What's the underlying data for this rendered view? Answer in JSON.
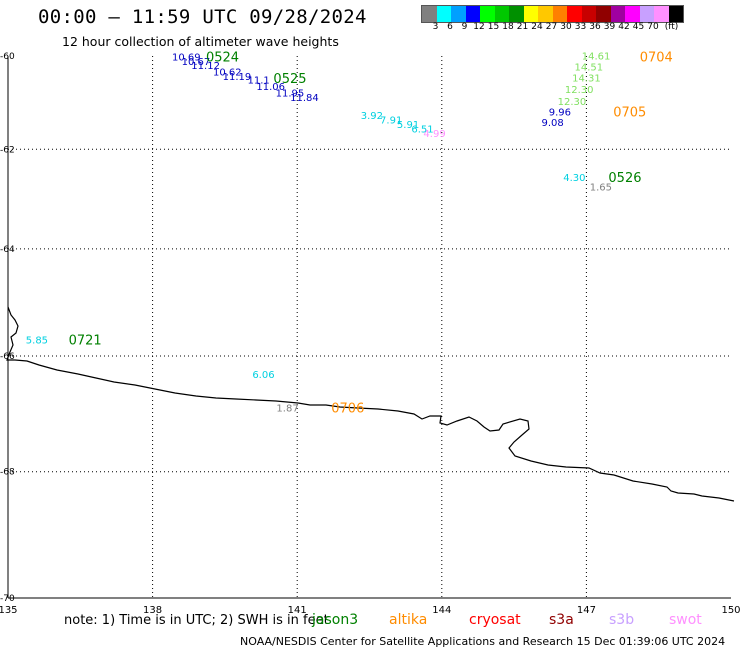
{
  "header": {
    "title": "00:00 – 11:59 UTC 09/28/2024",
    "subtitle": "12 hour collection of altimeter wave heights"
  },
  "colorbar": {
    "colors": [
      "#808080",
      "#00ffff",
      "#00a0ff",
      "#0000ff",
      "#00ff00",
      "#00c800",
      "#009000",
      "#ffff00",
      "#ffc800",
      "#ff8000",
      "#ff0000",
      "#c80000",
      "#900000",
      "#a000a0",
      "#ff00ff",
      "#c8a0ff",
      "#ff90ff",
      "#000000"
    ],
    "labels": [
      "3",
      "6",
      "9",
      "12",
      "15",
      "18",
      "21",
      "24",
      "27",
      "30",
      "33",
      "36",
      "39",
      "42",
      "45",
      "70",
      "(ft)"
    ]
  },
  "chart_data": {
    "type": "scatter",
    "xlim": [
      135,
      150
    ],
    "ylim": [
      -70,
      -60
    ],
    "x_ticks": [
      "135",
      "138",
      "141",
      "144",
      "147",
      "150"
    ],
    "y_ticks": [
      "-60",
      "-62",
      "-64",
      "-66",
      "-68",
      "-70"
    ],
    "y_tick_values": [
      -60,
      -62,
      -64,
      -66,
      -68,
      -70
    ],
    "grid": true,
    "points": [
      {
        "lon": 138.7,
        "lat": -60.01,
        "value": "10.69",
        "color": "#0000c0"
      },
      {
        "lon": 138.9,
        "lat": -60.11,
        "value": "10.67",
        "color": "#0000c0"
      },
      {
        "lon": 139.1,
        "lat": -60.2,
        "value": "11.12",
        "color": "#0000c0"
      },
      {
        "lon": 139.55,
        "lat": -60.34,
        "value": "10.62",
        "color": "#0000c0"
      },
      {
        "lon": 139.75,
        "lat": -60.44,
        "value": "11.19",
        "color": "#0000c0"
      },
      {
        "lon": 140.2,
        "lat": -60.52,
        "value": "11.1",
        "color": "#0000c0"
      },
      {
        "lon": 140.45,
        "lat": -60.66,
        "value": "11.06",
        "color": "#0000c0"
      },
      {
        "lon": 140.85,
        "lat": -60.8,
        "value": "11.95",
        "color": "#0000c0"
      },
      {
        "lon": 141.15,
        "lat": -60.89,
        "value": "11.84",
        "color": "#0000c0"
      },
      {
        "lon": 142.55,
        "lat": -61.28,
        "value": "3.92",
        "color": "#00d0e0"
      },
      {
        "lon": 142.95,
        "lat": -61.38,
        "value": "7.91",
        "color": "#00d0e0"
      },
      {
        "lon": 143.3,
        "lat": -61.47,
        "value": "5.91",
        "color": "#00d0e0"
      },
      {
        "lon": 143.6,
        "lat": -61.57,
        "value": "6.51",
        "color": "#00d0e0"
      },
      {
        "lon": 143.85,
        "lat": -61.66,
        "value": "4.99",
        "color": "#ff90ff"
      },
      {
        "lon": 147.2,
        "lat": -59.99,
        "value": "14.61",
        "color": "#80e060"
      },
      {
        "lon": 147.05,
        "lat": -60.23,
        "value": "14.51",
        "color": "#80e060"
      },
      {
        "lon": 147.0,
        "lat": -60.47,
        "value": "14.31",
        "color": "#80e060"
      },
      {
        "lon": 146.85,
        "lat": -60.72,
        "value": "12.30",
        "color": "#80e060"
      },
      {
        "lon": 146.7,
        "lat": -60.98,
        "value": "12.30",
        "color": "#80e060"
      },
      {
        "lon": 146.45,
        "lat": -61.2,
        "value": "9.96",
        "color": "#0000c0"
      },
      {
        "lon": 146.3,
        "lat": -61.43,
        "value": "9.08",
        "color": "#0000c0"
      },
      {
        "lon": 146.75,
        "lat": -62.57,
        "value": "4.30",
        "color": "#00d0e0"
      },
      {
        "lon": 147.3,
        "lat": -62.76,
        "value": "1.65",
        "color": "#808080"
      },
      {
        "lon": 135.6,
        "lat": -65.7,
        "value": "5.85",
        "color": "#00d0e0"
      },
      {
        "lon": 140.3,
        "lat": -66.32,
        "value": "6.06",
        "color": "#00d0e0"
      },
      {
        "lon": 140.8,
        "lat": -66.91,
        "value": "1.87",
        "color": "#808080"
      }
    ],
    "pass_labels": [
      {
        "lon": 139.45,
        "lat": -60.01,
        "text": "0524",
        "color": "#008000"
      },
      {
        "lon": 140.85,
        "lat": -60.48,
        "text": "0525",
        "color": "#008000"
      },
      {
        "lon": 148.45,
        "lat": -60.01,
        "text": "0704",
        "color": "#ff8c00"
      },
      {
        "lon": 147.9,
        "lat": -61.2,
        "text": "0705",
        "color": "#ff8c00"
      },
      {
        "lon": 147.8,
        "lat": -62.57,
        "text": "0526",
        "color": "#008000"
      },
      {
        "lon": 136.6,
        "lat": -65.7,
        "text": "0721",
        "color": "#008000"
      },
      {
        "lon": 142.05,
        "lat": -66.91,
        "text": "0706",
        "color": "#ff8c00"
      }
    ]
  },
  "footer": {
    "note": "note:  1) Time is in UTC; 2) SWH is in feet",
    "satellites": [
      {
        "name": "jason3",
        "color": "#008000"
      },
      {
        "name": "altika",
        "color": "#ff8c00"
      },
      {
        "name": "cryosat",
        "color": "#ff0000"
      },
      {
        "name": "s3a",
        "color": "#900000"
      },
      {
        "name": "s3b",
        "color": "#c8a0ff"
      },
      {
        "name": "swot",
        "color": "#ff90ff"
      }
    ],
    "credit": "NOAA/NESDIS Center for Satellite Applications and Research    15 Dec 01:39:06 UTC 2024"
  }
}
